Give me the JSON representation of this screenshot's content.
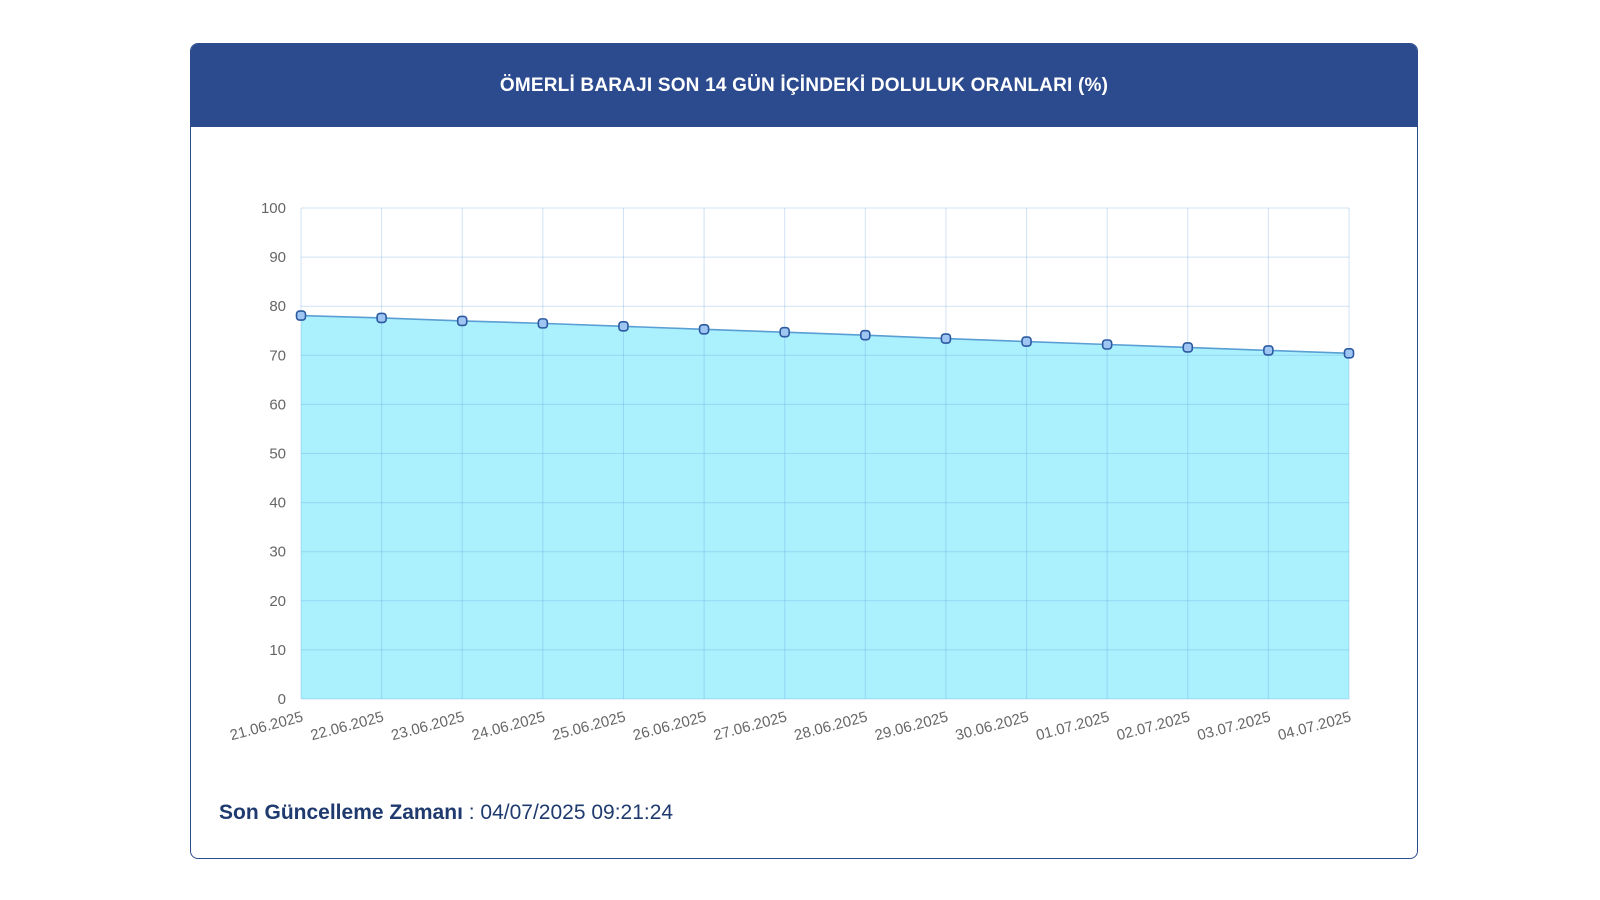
{
  "header": {
    "title": "ÖMERLİ BARAJI SON 14 GÜN İÇİNDEKİ DOLULUK ORANLARI (%)"
  },
  "footer": {
    "label": "Son Güncelleme Zamanı",
    "separator": " : ",
    "value": "04/07/2025 09:21:24"
  },
  "colors": {
    "header_bg": "#2c4a8e",
    "area_fill": "#aaf0fd",
    "line": "#5a9fd4",
    "marker_fill": "#9fc6f2",
    "marker_stroke": "#2c5aa0"
  },
  "chart_data": {
    "type": "area",
    "title": "ÖMERLİ BARAJI SON 14 GÜN İÇİNDEKİ DOLULUK ORANLARI (%)",
    "xlabel": "",
    "ylabel": "",
    "ylim": [
      0,
      100
    ],
    "yticks": [
      0,
      10,
      20,
      30,
      40,
      50,
      60,
      70,
      80,
      90,
      100
    ],
    "grid": true,
    "legend": "none",
    "categories": [
      "21.06.2025",
      "22.06.2025",
      "23.06.2025",
      "24.06.2025",
      "25.06.2025",
      "26.06.2025",
      "27.06.2025",
      "28.06.2025",
      "29.06.2025",
      "30.06.2025",
      "01.07.2025",
      "02.07.2025",
      "03.07.2025",
      "04.07.2025"
    ],
    "series": [
      {
        "values": [
          78.1,
          77.6,
          77.0,
          76.5,
          75.9,
          75.3,
          74.7,
          74.1,
          73.4,
          72.8,
          72.2,
          71.6,
          71.0,
          70.4
        ]
      }
    ]
  }
}
